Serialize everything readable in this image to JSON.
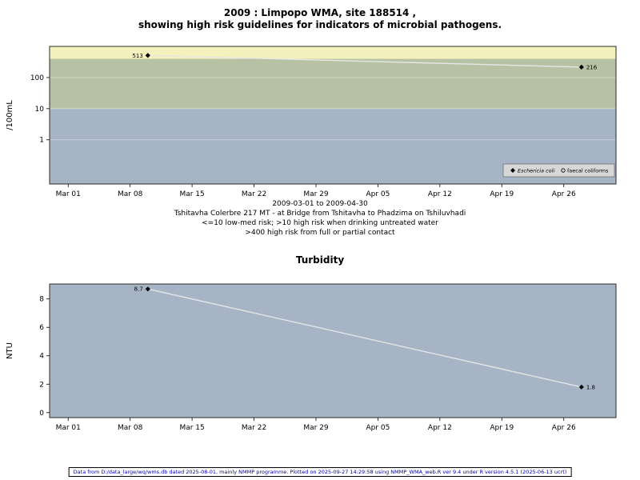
{
  "chart_data": [
    {
      "type": "line",
      "title_line1": "2009 : Limpopo WMA, site 188514 ,",
      "title_line2": "showing high risk guidelines for indicators of microbial pathogens.",
      "ylabel": "/100mL",
      "yscale": "log",
      "ylim": [
        0.038,
        1000
      ],
      "yticks": [
        1,
        10,
        100
      ],
      "x_tick_labels": [
        "Mar 01",
        "Mar 08",
        "Mar 15",
        "Mar 22",
        "Mar 29",
        "Apr 05",
        "Apr 12",
        "Apr 19",
        "Apr 26"
      ],
      "x_ticks_days": [
        0,
        7,
        14,
        21,
        28,
        35,
        42,
        49,
        56
      ],
      "xlim_days": [
        -2.1,
        61.9
      ],
      "grid": true,
      "line_color": "#e6e6e6",
      "bands": [
        {
          "label": "low-med risk (<=10)",
          "from": 0.038,
          "to": 10,
          "color": "#a6b4c6"
        },
        {
          "label": "high risk when drinking untreated water (>10)",
          "from": 10,
          "to": 400,
          "color": "#b7c2a4"
        },
        {
          "label": "high risk from full or partial contact (>400)",
          "from": 400,
          "to": 1000,
          "color": "#f5f1bd"
        }
      ],
      "series": [
        {
          "name": "Eschericia coli",
          "marker": "filled-diamond",
          "points": [
            {
              "x_day": 9,
              "value": 513,
              "label": "513",
              "label_side": "left"
            },
            {
              "x_day": 58,
              "value": 216,
              "label": "216",
              "label_side": "right"
            }
          ]
        }
      ],
      "legend": {
        "position": "bottom-right-inside",
        "items": [
          {
            "label": "Eschericia coli",
            "marker": "filled-diamond",
            "italic": true
          },
          {
            "label": "faecal coliforms",
            "marker": "open-circle",
            "italic": false
          }
        ]
      },
      "caption": [
        "2009-03-01 to 2009-04-30",
        "Tshitavha Colerbre 217 MT - at Bridge from Tshitavha to Phadzima on Tshiluvhadi",
        "<=10 low-med risk; >10 high risk when drinking untreated water",
        ">400 high risk from full or partial contact"
      ]
    },
    {
      "type": "line",
      "title": "Turbidity",
      "ylabel": "NTU",
      "yscale": "linear",
      "ylim": [
        -0.35,
        9.05
      ],
      "yticks": [
        0,
        2,
        4,
        6,
        8
      ],
      "x_tick_labels": [
        "Mar 01",
        "Mar 08",
        "Mar 15",
        "Mar 22",
        "Mar 29",
        "Apr 05",
        "Apr 12",
        "Apr 19",
        "Apr 26"
      ],
      "x_ticks_days": [
        0,
        7,
        14,
        21,
        28,
        35,
        42,
        49,
        56
      ],
      "xlim_days": [
        -2.1,
        61.9
      ],
      "grid": false,
      "line_color": "#e6e6e6",
      "plot_bg": "#a6b4c6",
      "series": [
        {
          "name": "turbidity",
          "marker": "filled-diamond",
          "points": [
            {
              "x_day": 9,
              "value": 8.7,
              "label": "8.7",
              "label_side": "left"
            },
            {
              "x_day": 58,
              "value": 1.8,
              "label": "1.8",
              "label_side": "right"
            }
          ]
        }
      ]
    }
  ],
  "footer": "Data from D:/data_large/wq/wms.db dated 2025-08-01, mainly NMMP programme. Plotted on 2025-09-27 14:29:58 using NMMP_WMA_web.R ver 9.4 under R version 4.5.1 (2025-06-13 ucrt)"
}
